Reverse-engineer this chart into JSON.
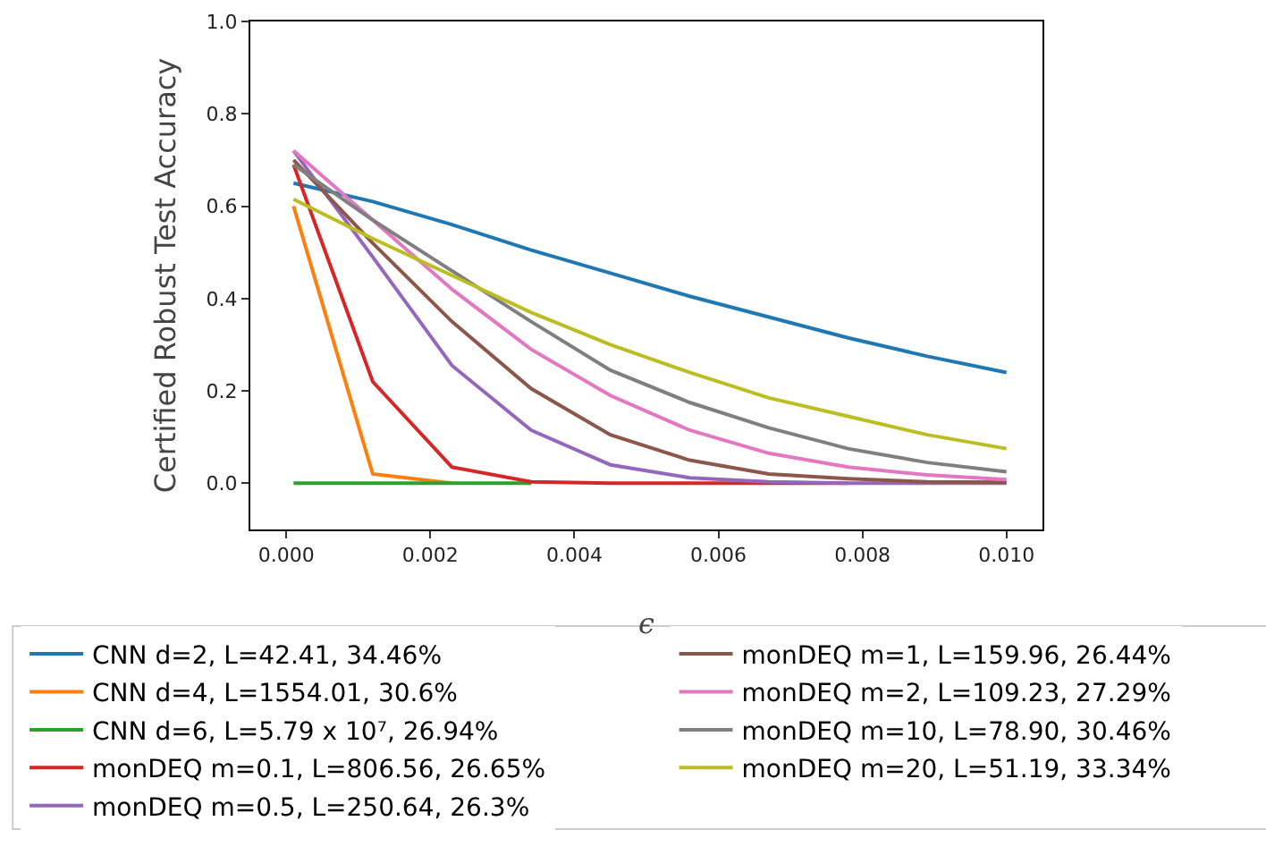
{
  "chart_data": {
    "type": "line",
    "xlabel": "ϵ",
    "ylabel": "Certified Robust Test Accuracy",
    "x": [
      0.0001,
      0.0012,
      0.0023,
      0.0034,
      0.0045,
      0.0056,
      0.0067,
      0.0078,
      0.0089,
      0.01
    ],
    "xlim": [
      -0.0005,
      0.0105
    ],
    "xticks": [
      {
        "value": 0,
        "label": "0.000"
      },
      {
        "value": 0.002,
        "label": "0.002"
      },
      {
        "value": 0.004,
        "label": "0.004"
      },
      {
        "value": 0.006,
        "label": "0.006"
      },
      {
        "value": 0.008,
        "label": "0.008"
      },
      {
        "value": 0.01,
        "label": "0.010"
      }
    ],
    "ylim": [
      -0.1,
      1.0
    ],
    "yticks": [
      {
        "value": 0,
        "label": "0.0"
      },
      {
        "value": 0.2,
        "label": "0.2"
      },
      {
        "value": 0.4,
        "label": "0.4"
      },
      {
        "value": 0.6,
        "label": "0.6"
      },
      {
        "value": 0.8,
        "label": "0.8"
      },
      {
        "value": 1,
        "label": "1.0"
      }
    ],
    "grid": false,
    "legend": "bottom",
    "marker": "none",
    "line_style": "solid",
    "series": [
      {
        "name": "CNN d=2, L=42.41, 34.46%",
        "color": "#1f77b4",
        "values": [
          0.65,
          0.61,
          0.56,
          0.505,
          0.455,
          0.405,
          0.36,
          0.315,
          0.275,
          0.24
        ]
      },
      {
        "name": "CNN d=4, L=1554.01, 30.6%",
        "color": "#ff7f0e",
        "values": [
          0.6,
          0.02,
          0,
          null,
          null,
          null,
          null,
          null,
          null,
          null
        ]
      },
      {
        "name": "CNN d=6, L=5.79 x 10⁷, 26.94%",
        "color": "#2ca02c",
        "values": [
          0,
          0,
          0,
          0,
          null,
          null,
          null,
          null,
          null,
          null
        ]
      },
      {
        "name": "monDEQ m=0.1, L=806.56, 26.65%",
        "color": "#d62728",
        "values": [
          0.69,
          0.22,
          0.035,
          0.003,
          0,
          0,
          0,
          0,
          null,
          null
        ]
      },
      {
        "name": "monDEQ m=0.5, L=250.64, 26.3%",
        "color": "#9467bd",
        "values": [
          0.72,
          0.49,
          0.255,
          0.115,
          0.04,
          0.012,
          0.003,
          0,
          0,
          0
        ]
      },
      {
        "name": "monDEQ m=1, L=159.96, 26.44%",
        "color": "#8c564b",
        "values": [
          0.7,
          0.52,
          0.35,
          0.205,
          0.105,
          0.05,
          0.02,
          0.01,
          0.003,
          0.002
        ]
      },
      {
        "name": "monDEQ m=2, L=109.23, 27.29%",
        "color": "#e377c2",
        "values": [
          0.72,
          0.57,
          0.42,
          0.29,
          0.19,
          0.115,
          0.065,
          0.035,
          0.018,
          0.008
        ]
      },
      {
        "name": "monDEQ m=10, L=78.90, 30.46%",
        "color": "#7f7f7f",
        "values": [
          0.69,
          0.57,
          0.46,
          0.35,
          0.245,
          0.175,
          0.12,
          0.075,
          0.045,
          0.025
        ]
      },
      {
        "name": "monDEQ m=20, L=51.19, 33.34%",
        "color": "#bcbd22",
        "values": [
          0.615,
          0.53,
          0.45,
          0.37,
          0.3,
          0.24,
          0.185,
          0.145,
          0.105,
          0.075
        ]
      }
    ]
  }
}
